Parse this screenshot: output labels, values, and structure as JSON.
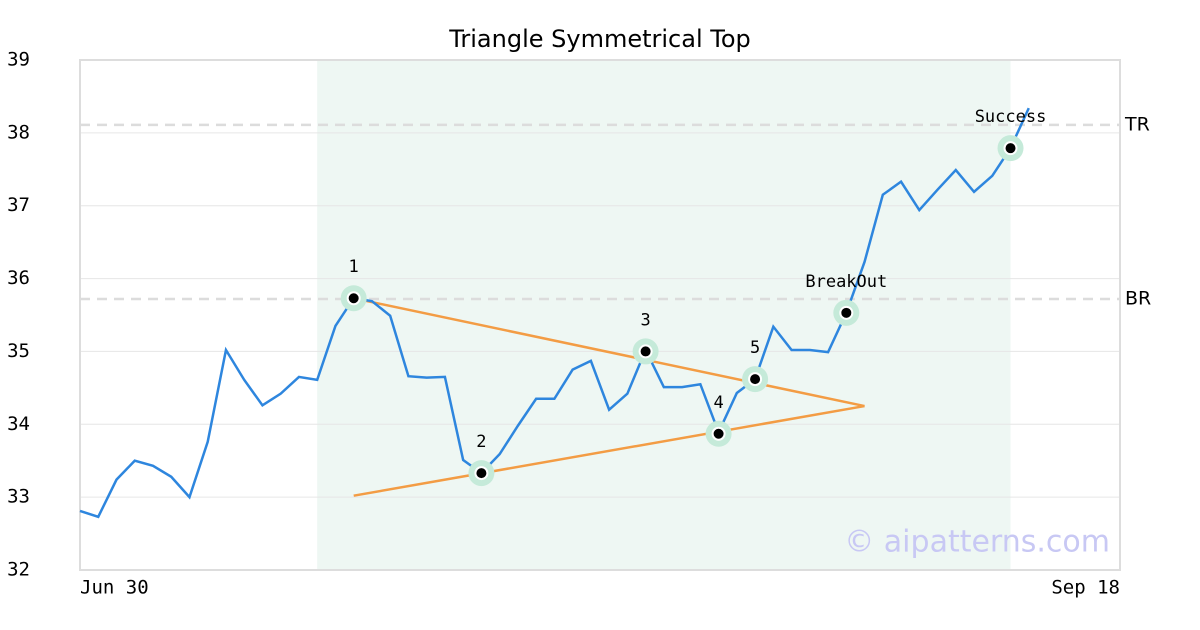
{
  "chart_data": {
    "type": "line",
    "title": "Triangle Symmetrical Top",
    "x": [
      0,
      1,
      2,
      3,
      4,
      5,
      6,
      7,
      8,
      9,
      10,
      11,
      12,
      13,
      14,
      15,
      16,
      17,
      18,
      19,
      20,
      21,
      22,
      23,
      24,
      25,
      26,
      27,
      28,
      29,
      30,
      31,
      32,
      33,
      34,
      35,
      36,
      37,
      38,
      39,
      40,
      41,
      42,
      43,
      44,
      45,
      46,
      47,
      48,
      49,
      50,
      51,
      52
    ],
    "series": [
      {
        "color": "#2e86de",
        "values": [
          32.81,
          32.73,
          33.24,
          33.5,
          33.43,
          33.28,
          33.0,
          33.76,
          35.02,
          34.61,
          34.26,
          34.42,
          34.65,
          34.61,
          35.35,
          35.73,
          35.69,
          35.49,
          34.66,
          34.64,
          34.65,
          33.51,
          33.33,
          33.59,
          33.98,
          34.35,
          34.35,
          34.75,
          34.87,
          34.2,
          34.42,
          35.02,
          34.51,
          34.51,
          34.55,
          33.89,
          34.43,
          34.62,
          35.34,
          35.02,
          35.02,
          34.99,
          35.53,
          36.23,
          37.15,
          37.33,
          36.94,
          37.22,
          37.49,
          37.19,
          37.41,
          37.79,
          38.34
        ]
      }
    ],
    "xlim": [
      0,
      57
    ],
    "xticks": [
      {
        "value": 0,
        "label": "Jun 30"
      },
      {
        "value": 57,
        "label": "Sep 18"
      }
    ],
    "ylim": [
      32,
      39
    ],
    "yticks": [
      32,
      33,
      34,
      35,
      36,
      37,
      38,
      39
    ],
    "grid": true,
    "shaded_region": {
      "x": [
        13,
        51
      ],
      "color": "#eef7f3"
    },
    "trend_lines": [
      {
        "x": [
          15,
          43
        ],
        "y": [
          35.73,
          34.25
        ],
        "color": "#f39c44"
      },
      {
        "x": [
          15,
          43
        ],
        "y": [
          33.02,
          34.25
        ],
        "color": "#f39c44"
      }
    ],
    "points": [
      {
        "label": "1",
        "x": 15,
        "y": 35.73
      },
      {
        "label": "2",
        "x": 22,
        "y": 33.33
      },
      {
        "label": "3",
        "x": 31,
        "y": 35.0
      },
      {
        "label": "4",
        "x": 35,
        "y": 33.87
      },
      {
        "label": "5",
        "x": 37,
        "y": 34.62
      },
      {
        "label": "BreakOut",
        "x": 42,
        "y": 35.53
      },
      {
        "label": "Success",
        "x": 51,
        "y": 37.79
      }
    ],
    "hlines": [
      {
        "label": "TR",
        "value": 38.11
      },
      {
        "label": "BR",
        "value": 35.72
      }
    ],
    "watermark": "© aipatterns.com"
  }
}
